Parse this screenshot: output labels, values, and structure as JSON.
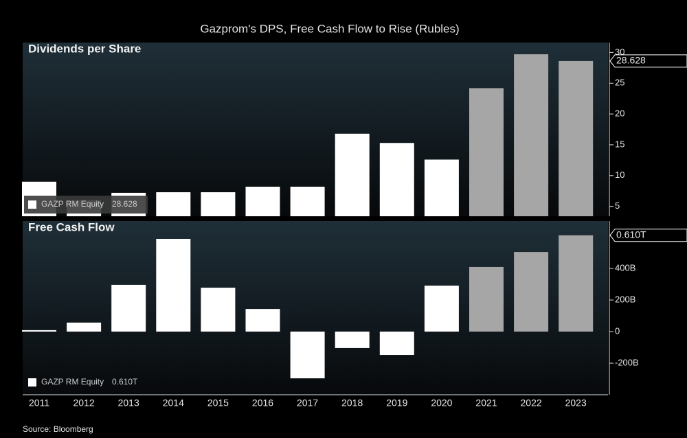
{
  "chart_data": [
    {
      "type": "bar",
      "title": "Gazprom's DPS, Free Cash Flow to Rise (Rubles)",
      "panel_title": "Dividends per Share",
      "series": [
        {
          "name": "GAZP RM Equity",
          "values": [
            9.0,
            6.0,
            7.2,
            7.3,
            7.3,
            8.2,
            8.2,
            16.8,
            15.3,
            12.6,
            24.2,
            29.7,
            28.6
          ],
          "colors": [
            "#ffffff",
            "#ffffff",
            "#ffffff",
            "#ffffff",
            "#ffffff",
            "#ffffff",
            "#ffffff",
            "#ffffff",
            "#ffffff",
            "#ffffff",
            "#a6a6a6",
            "#a6a6a6",
            "#a6a6a6"
          ]
        }
      ],
      "last_label": "28.628",
      "ylim": [
        3.4,
        31.6
      ],
      "yticks": [
        5,
        10,
        15,
        20,
        25,
        30
      ]
    },
    {
      "type": "bar",
      "panel_title": "Free Cash Flow",
      "categories": [
        "2011",
        "2012",
        "2013",
        "2014",
        "2015",
        "2016",
        "2017",
        "2018",
        "2019",
        "2020",
        "2021",
        "2022",
        "2023"
      ],
      "series": [
        {
          "name": "GAZP RM Equity",
          "values": [
            9,
            57,
            296,
            587,
            278,
            143,
            -296,
            -104,
            -148,
            291,
            409,
            504,
            610
          ],
          "colors": [
            "#ffffff",
            "#ffffff",
            "#ffffff",
            "#ffffff",
            "#ffffff",
            "#ffffff",
            "#ffffff",
            "#ffffff",
            "#ffffff",
            "#ffffff",
            "#a6a6a6",
            "#a6a6a6",
            "#a6a6a6"
          ]
        }
      ],
      "last_label": "0.610T",
      "ylim": [
        -400,
        700
      ],
      "yticks": [
        {
          "value": -200,
          "label": "-200B"
        },
        0,
        {
          "value": 200,
          "label": "200B"
        },
        {
          "value": 400,
          "label": "400B"
        }
      ],
      "source": "Source: Bloomberg"
    }
  ]
}
